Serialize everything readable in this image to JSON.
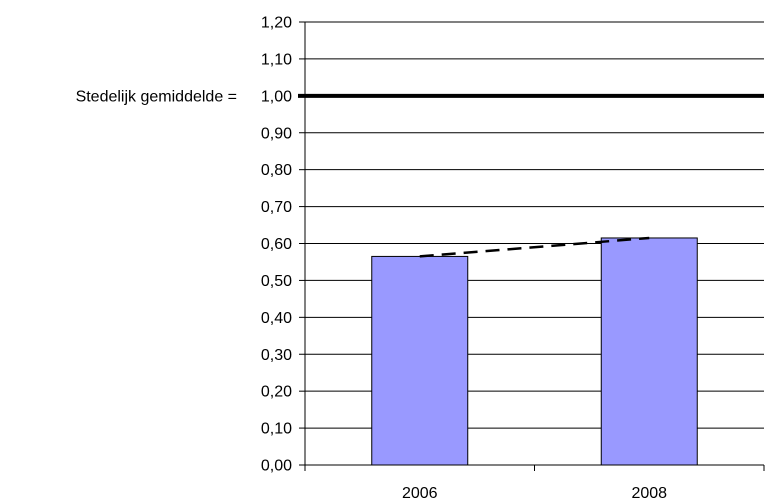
{
  "chart_data": {
    "type": "bar",
    "categories": [
      "2006",
      "2008"
    ],
    "values": [
      0.565,
      0.615
    ],
    "ylim": [
      0,
      1.2
    ],
    "yticks": [
      "0,00",
      "0,10",
      "0,20",
      "0,30",
      "0,40",
      "0,50",
      "0,60",
      "0,70",
      "0,80",
      "0,90",
      "1,00",
      "1,10",
      "1,20"
    ],
    "reference_line": {
      "value": 1.0,
      "label": "Stedelijk gemiddelde ="
    },
    "trendline": {
      "style": "dashed",
      "from": 0.565,
      "to": 0.615
    },
    "grid": true,
    "colors": {
      "bar": "#9999ff",
      "bar_border": "#000000",
      "grid": "#000000",
      "reference": "#000000"
    }
  }
}
